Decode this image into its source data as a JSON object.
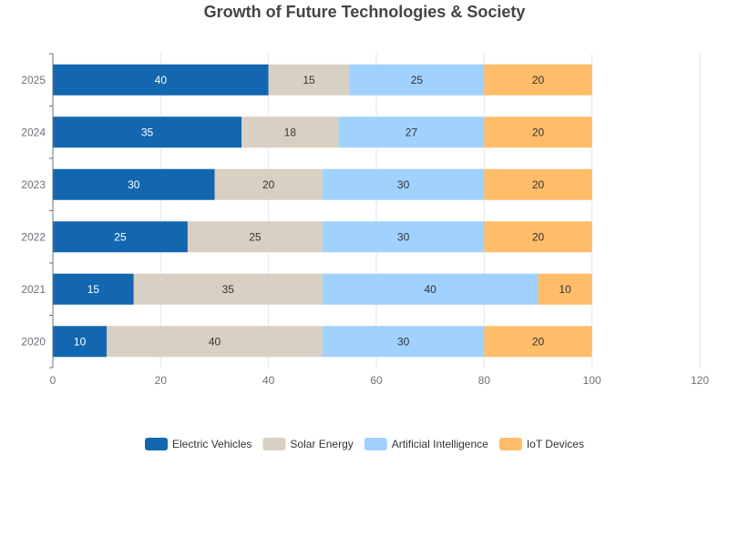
{
  "chart_data": {
    "type": "bar",
    "orientation": "horizontal",
    "stacked": true,
    "title": "Growth of Future Technologies & Society",
    "categories": [
      "2020",
      "2021",
      "2022",
      "2023",
      "2024",
      "2025"
    ],
    "series": [
      {
        "name": "Electric Vehicles",
        "values": [
          10,
          15,
          25,
          30,
          35,
          40
        ],
        "color": "#1367b0",
        "label_color": "#ffffff"
      },
      {
        "name": "Solar Energy",
        "values": [
          40,
          35,
          25,
          20,
          18,
          15
        ],
        "color": "#d8d0c2",
        "label_color": "#333333"
      },
      {
        "name": "Artificial Intelligence",
        "values": [
          30,
          40,
          30,
          30,
          27,
          25
        ],
        "color": "#a1d1ff",
        "label_color": "#333333"
      },
      {
        "name": "IoT Devices",
        "values": [
          20,
          10,
          20,
          20,
          20,
          20
        ],
        "color": "#ffbd6a",
        "label_color": "#333333"
      }
    ],
    "xlim": [
      0,
      120
    ],
    "x_ticks": [
      0,
      20,
      40,
      60,
      80,
      100,
      120
    ],
    "grid": true,
    "legend_position": "bottom"
  }
}
